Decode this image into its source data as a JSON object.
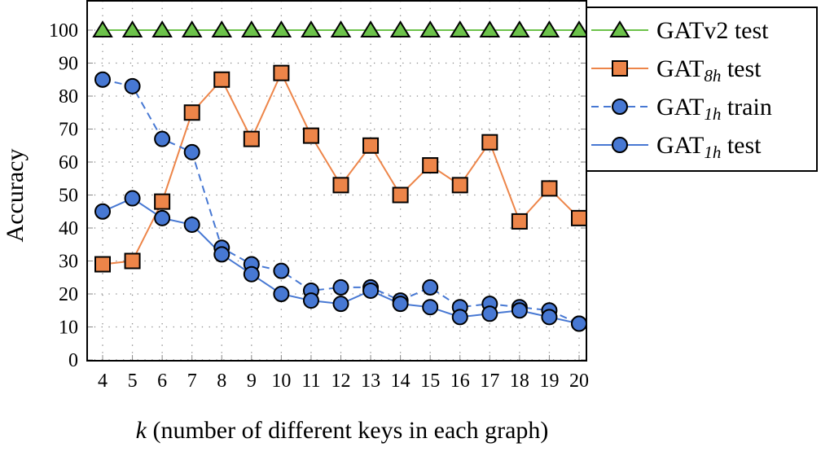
{
  "chart_data": {
    "type": "line",
    "xlabel_var": "k",
    "xlabel_rest": " (number of different keys in each graph)",
    "ylabel": "Accuracy",
    "x": [
      4,
      5,
      6,
      7,
      8,
      9,
      10,
      11,
      12,
      13,
      14,
      15,
      16,
      17,
      18,
      19,
      20
    ],
    "xlim": [
      4,
      20
    ],
    "ylim": [
      0,
      100
    ],
    "yticks": [
      0,
      10,
      20,
      30,
      40,
      50,
      60,
      70,
      80,
      90,
      100
    ],
    "grid": true,
    "legend_position": "top-right, outside",
    "series": [
      {
        "name_main": "GATv2",
        "name_sub": "",
        "name_suffix": " test",
        "color": "#6cc24a",
        "marker": "triangle",
        "dash": false,
        "values": [
          100,
          100,
          100,
          100,
          100,
          100,
          100,
          100,
          100,
          100,
          100,
          100,
          100,
          100,
          100,
          100,
          100
        ]
      },
      {
        "name_main": "GAT",
        "name_sub": "8h",
        "name_suffix": " test",
        "color": "#ed8549",
        "marker": "square",
        "dash": false,
        "values": [
          29,
          30,
          48,
          75,
          85,
          67,
          87,
          68,
          53,
          65,
          50,
          59,
          53,
          66,
          42,
          52,
          43
        ]
      },
      {
        "name_main": "GAT",
        "name_sub": "1h",
        "name_suffix": " train",
        "color": "#4778d3",
        "marker": "circle",
        "dash": true,
        "values": [
          85,
          83,
          67,
          63,
          34,
          29,
          27,
          21,
          22,
          22,
          18,
          22,
          16,
          17,
          16,
          15,
          11
        ]
      },
      {
        "name_main": "GAT",
        "name_sub": "1h",
        "name_suffix": " test",
        "color": "#4778d3",
        "marker": "circle",
        "dash": false,
        "values": [
          45,
          49,
          43,
          41,
          32,
          26,
          20,
          18,
          17,
          21,
          17,
          16,
          13,
          14,
          15,
          13,
          11
        ]
      }
    ]
  }
}
